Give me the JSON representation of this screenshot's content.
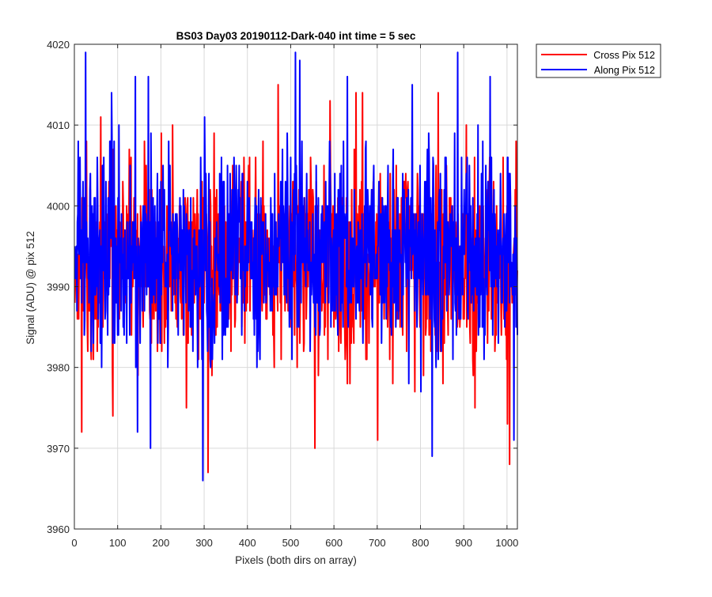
{
  "chart_data": {
    "type": "line",
    "title": "BS03 Day03 20190112-Dark-040 int time = 5 sec",
    "xlabel": "Pixels (both dirs on array)",
    "ylabel": "Signal (ADU) @ pix 512",
    "xlim": [
      0,
      1024
    ],
    "ylim": [
      3960,
      4020
    ],
    "xticks": [
      0,
      100,
      200,
      300,
      400,
      500,
      600,
      700,
      800,
      900,
      1000
    ],
    "yticks": [
      3960,
      3970,
      3980,
      3990,
      4000,
      4010,
      4020
    ],
    "xtick_labels": [
      "0",
      "100",
      "200",
      "300",
      "400",
      "500",
      "600",
      "700",
      "800",
      "900",
      "1000"
    ],
    "ytick_labels": [
      "3960",
      "3970",
      "3980",
      "3990",
      "4000",
      "4010",
      "4020"
    ],
    "grid": true,
    "legend_position": "outside-top-right",
    "series": [
      {
        "name": "Cross Pix 512",
        "color": "#ff0000",
        "mean": 3993,
        "spread": 6,
        "noise_seed": 17,
        "points": 1024,
        "extremes": [
          {
            "x": 16,
            "y": 3972
          },
          {
            "x": 27,
            "y": 4008
          },
          {
            "x": 60,
            "y": 4011
          },
          {
            "x": 88,
            "y": 3974
          },
          {
            "x": 130,
            "y": 4006
          },
          {
            "x": 226,
            "y": 4010
          },
          {
            "x": 258,
            "y": 3975
          },
          {
            "x": 308,
            "y": 3967
          },
          {
            "x": 470,
            "y": 4015
          },
          {
            "x": 555,
            "y": 3970
          },
          {
            "x": 590,
            "y": 4013
          },
          {
            "x": 650,
            "y": 4014
          },
          {
            "x": 665,
            "y": 4014
          },
          {
            "x": 700,
            "y": 3971
          },
          {
            "x": 840,
            "y": 4014
          },
          {
            "x": 905,
            "y": 4010
          },
          {
            "x": 925,
            "y": 3975
          },
          {
            "x": 1000,
            "y": 3973
          },
          {
            "x": 1005,
            "y": 3968
          },
          {
            "x": 1020,
            "y": 4008
          }
        ]
      },
      {
        "name": "Along Pix 512",
        "color": "#0000ff",
        "mean": 3994,
        "spread": 6,
        "noise_seed": 91,
        "points": 1024,
        "extremes": [
          {
            "x": 25,
            "y": 4019
          },
          {
            "x": 85,
            "y": 4014
          },
          {
            "x": 140,
            "y": 4016
          },
          {
            "x": 145,
            "y": 3972
          },
          {
            "x": 170,
            "y": 4016
          },
          {
            "x": 175,
            "y": 3970
          },
          {
            "x": 296,
            "y": 3966
          },
          {
            "x": 300,
            "y": 4011
          },
          {
            "x": 510,
            "y": 4019
          },
          {
            "x": 520,
            "y": 4018
          },
          {
            "x": 630,
            "y": 4016
          },
          {
            "x": 780,
            "y": 4015
          },
          {
            "x": 800,
            "y": 3977
          },
          {
            "x": 826,
            "y": 3969
          },
          {
            "x": 885,
            "y": 4019
          },
          {
            "x": 960,
            "y": 4016
          },
          {
            "x": 1015,
            "y": 3971
          }
        ]
      }
    ]
  }
}
